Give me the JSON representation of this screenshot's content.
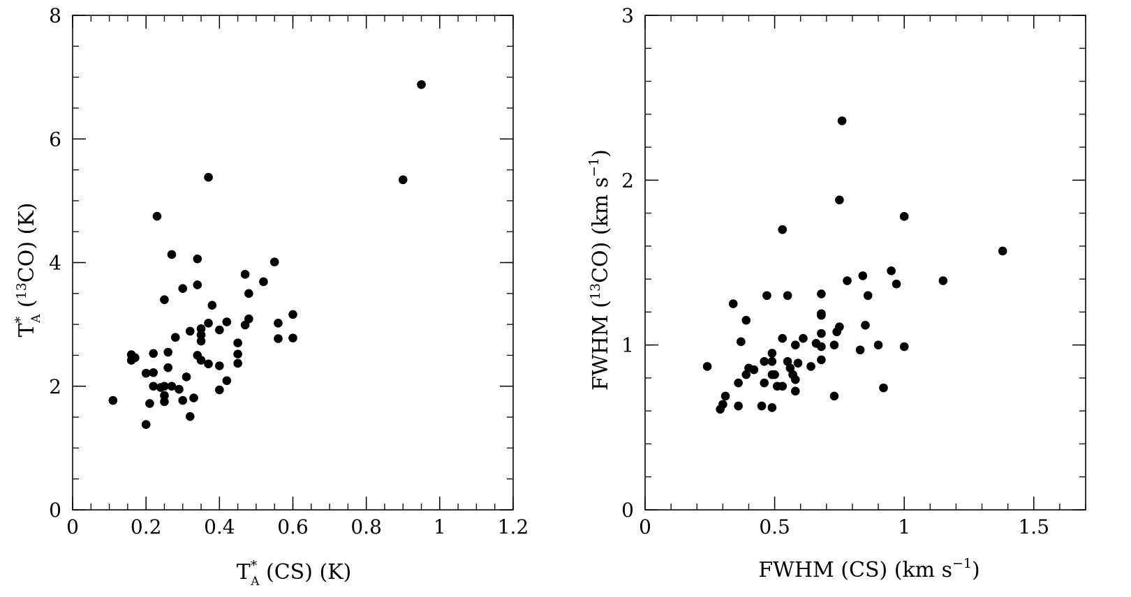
{
  "chart_data": [
    {
      "type": "scatter",
      "xlabel": "T*A (CS) (K)",
      "ylabel": "T*A (13CO) (K)",
      "xlim": [
        0,
        1.2
      ],
      "ylim": [
        0,
        8
      ],
      "xticks": [
        "0",
        "0.2",
        "0.4",
        "0.6",
        "0.8",
        "1",
        "1.2"
      ],
      "yticks": [
        "0",
        "2",
        "4",
        "6",
        "8"
      ],
      "grid": false,
      "marker_color": "#000000",
      "points": [
        {
          "x": 0.11,
          "y": 1.77
        },
        {
          "x": 0.16,
          "y": 2.51
        },
        {
          "x": 0.16,
          "y": 2.42
        },
        {
          "x": 0.17,
          "y": 2.46
        },
        {
          "x": 0.2,
          "y": 2.21
        },
        {
          "x": 0.2,
          "y": 1.38
        },
        {
          "x": 0.21,
          "y": 1.72
        },
        {
          "x": 0.22,
          "y": 2.53
        },
        {
          "x": 0.22,
          "y": 2.22
        },
        {
          "x": 0.22,
          "y": 2.0
        },
        {
          "x": 0.23,
          "y": 4.75
        },
        {
          "x": 0.24,
          "y": 1.98
        },
        {
          "x": 0.25,
          "y": 1.85
        },
        {
          "x": 0.25,
          "y": 1.75
        },
        {
          "x": 0.25,
          "y": 2.0
        },
        {
          "x": 0.25,
          "y": 3.4
        },
        {
          "x": 0.26,
          "y": 2.55
        },
        {
          "x": 0.26,
          "y": 2.3
        },
        {
          "x": 0.27,
          "y": 4.13
        },
        {
          "x": 0.27,
          "y": 2.0
        },
        {
          "x": 0.28,
          "y": 2.79
        },
        {
          "x": 0.29,
          "y": 1.95
        },
        {
          "x": 0.3,
          "y": 3.58
        },
        {
          "x": 0.3,
          "y": 1.77
        },
        {
          "x": 0.31,
          "y": 2.15
        },
        {
          "x": 0.32,
          "y": 2.89
        },
        {
          "x": 0.32,
          "y": 1.51
        },
        {
          "x": 0.33,
          "y": 1.81
        },
        {
          "x": 0.34,
          "y": 4.06
        },
        {
          "x": 0.34,
          "y": 3.64
        },
        {
          "x": 0.34,
          "y": 2.5
        },
        {
          "x": 0.35,
          "y": 2.93
        },
        {
          "x": 0.35,
          "y": 2.83
        },
        {
          "x": 0.35,
          "y": 2.73
        },
        {
          "x": 0.35,
          "y": 2.42
        },
        {
          "x": 0.37,
          "y": 5.38
        },
        {
          "x": 0.37,
          "y": 3.02
        },
        {
          "x": 0.37,
          "y": 2.36
        },
        {
          "x": 0.38,
          "y": 3.31
        },
        {
          "x": 0.4,
          "y": 2.91
        },
        {
          "x": 0.4,
          "y": 2.33
        },
        {
          "x": 0.4,
          "y": 1.94
        },
        {
          "x": 0.42,
          "y": 3.04
        },
        {
          "x": 0.42,
          "y": 2.09
        },
        {
          "x": 0.45,
          "y": 2.7
        },
        {
          "x": 0.45,
          "y": 2.52
        },
        {
          "x": 0.45,
          "y": 2.37
        },
        {
          "x": 0.47,
          "y": 3.81
        },
        {
          "x": 0.47,
          "y": 2.99
        },
        {
          "x": 0.48,
          "y": 3.5
        },
        {
          "x": 0.48,
          "y": 3.09
        },
        {
          "x": 0.52,
          "y": 3.69
        },
        {
          "x": 0.55,
          "y": 4.01
        },
        {
          "x": 0.56,
          "y": 3.02
        },
        {
          "x": 0.56,
          "y": 2.77
        },
        {
          "x": 0.6,
          "y": 3.16
        },
        {
          "x": 0.6,
          "y": 2.78
        },
        {
          "x": 0.9,
          "y": 5.34
        },
        {
          "x": 0.95,
          "y": 6.88
        }
      ]
    },
    {
      "type": "scatter",
      "xlabel": "FWHM (CS) (km s-1)",
      "ylabel": "FWHM (13CO) (km s-1)",
      "xlim": [
        0,
        1.7
      ],
      "ylim": [
        0,
        3
      ],
      "xticks": [
        "0",
        "0.5",
        "1",
        "1.5"
      ],
      "yticks": [
        "0",
        "1",
        "2",
        "3"
      ],
      "grid": false,
      "marker_color": "#000000",
      "points": [
        {
          "x": 0.24,
          "y": 0.87
        },
        {
          "x": 0.29,
          "y": 0.61
        },
        {
          "x": 0.3,
          "y": 0.64
        },
        {
          "x": 0.31,
          "y": 0.69
        },
        {
          "x": 0.34,
          "y": 1.25
        },
        {
          "x": 0.36,
          "y": 0.77
        },
        {
          "x": 0.36,
          "y": 0.63
        },
        {
          "x": 0.37,
          "y": 1.02
        },
        {
          "x": 0.39,
          "y": 1.15
        },
        {
          "x": 0.39,
          "y": 0.82
        },
        {
          "x": 0.4,
          "y": 0.86
        },
        {
          "x": 0.42,
          "y": 0.85
        },
        {
          "x": 0.45,
          "y": 0.63
        },
        {
          "x": 0.46,
          "y": 0.9
        },
        {
          "x": 0.46,
          "y": 0.77
        },
        {
          "x": 0.47,
          "y": 1.3
        },
        {
          "x": 0.49,
          "y": 0.95
        },
        {
          "x": 0.49,
          "y": 0.9
        },
        {
          "x": 0.49,
          "y": 0.82
        },
        {
          "x": 0.49,
          "y": 0.62
        },
        {
          "x": 0.5,
          "y": 0.82
        },
        {
          "x": 0.51,
          "y": 0.75
        },
        {
          "x": 0.53,
          "y": 1.7
        },
        {
          "x": 0.53,
          "y": 1.04
        },
        {
          "x": 0.53,
          "y": 0.75
        },
        {
          "x": 0.55,
          "y": 1.3
        },
        {
          "x": 0.55,
          "y": 0.9
        },
        {
          "x": 0.56,
          "y": 0.86
        },
        {
          "x": 0.57,
          "y": 0.82
        },
        {
          "x": 0.58,
          "y": 1.0
        },
        {
          "x": 0.58,
          "y": 0.79
        },
        {
          "x": 0.58,
          "y": 0.72
        },
        {
          "x": 0.59,
          "y": 0.89
        },
        {
          "x": 0.61,
          "y": 1.04
        },
        {
          "x": 0.64,
          "y": 0.87
        },
        {
          "x": 0.66,
          "y": 1.01
        },
        {
          "x": 0.68,
          "y": 1.31
        },
        {
          "x": 0.68,
          "y": 1.19
        },
        {
          "x": 0.68,
          "y": 1.18
        },
        {
          "x": 0.68,
          "y": 1.07
        },
        {
          "x": 0.68,
          "y": 0.99
        },
        {
          "x": 0.68,
          "y": 0.91
        },
        {
          "x": 0.73,
          "y": 1.0
        },
        {
          "x": 0.73,
          "y": 0.69
        },
        {
          "x": 0.74,
          "y": 1.08
        },
        {
          "x": 0.75,
          "y": 1.88
        },
        {
          "x": 0.75,
          "y": 1.11
        },
        {
          "x": 0.76,
          "y": 2.36
        },
        {
          "x": 0.78,
          "y": 1.39
        },
        {
          "x": 0.83,
          "y": 0.97
        },
        {
          "x": 0.84,
          "y": 1.42
        },
        {
          "x": 0.85,
          "y": 1.12
        },
        {
          "x": 0.86,
          "y": 1.3
        },
        {
          "x": 0.9,
          "y": 1.0
        },
        {
          "x": 0.92,
          "y": 0.74
        },
        {
          "x": 0.95,
          "y": 1.45
        },
        {
          "x": 0.97,
          "y": 1.37
        },
        {
          "x": 1.0,
          "y": 1.78
        },
        {
          "x": 1.0,
          "y": 0.99
        },
        {
          "x": 1.15,
          "y": 1.39
        },
        {
          "x": 1.38,
          "y": 1.57
        }
      ]
    }
  ]
}
